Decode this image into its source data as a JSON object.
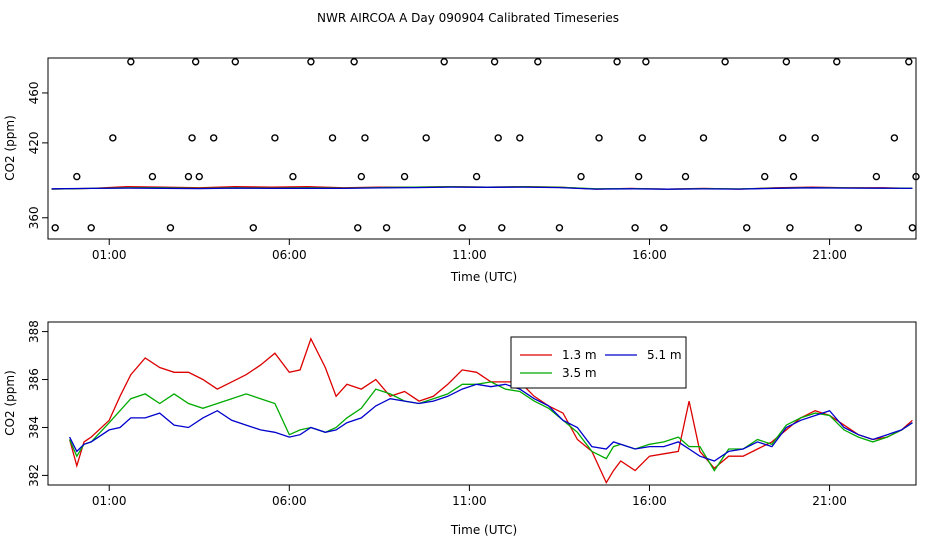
{
  "title": "NWR AIRCOA A  Day 090904  Calibrated Timeseries",
  "chart_data": [
    {
      "type": "scatter",
      "xlabel": "Time (UTC)",
      "ylabel": "CO2 (ppm)",
      "xlim": [
        -0.7,
        23.4
      ],
      "ylim": [
        343,
        488
      ],
      "xticks": [
        1,
        6,
        11,
        16,
        21
      ],
      "xtick_labels": [
        "01:00",
        "06:00",
        "11:00",
        "16:00",
        "21:00"
      ],
      "yticks": [
        360,
        420,
        460
      ],
      "ytick_labels": [
        "360",
        "420",
        "460"
      ],
      "grid": false,
      "series": [
        {
          "color": "#dd0000",
          "x": [
            -0.6,
            0.5,
            1.5,
            2.5,
            3.5,
            4.5,
            5.5,
            6.5,
            7.5,
            8.5,
            9.5,
            10.5,
            11.5,
            12.5,
            13.5,
            14.5,
            15.5,
            16.5,
            17.5,
            18.5,
            19.5,
            20.5,
            21.5,
            22.5,
            23.3
          ],
          "y": [
            383,
            383.5,
            385,
            384.5,
            384,
            385,
            384.5,
            385,
            384,
            384.5,
            384.5,
            385,
            384.5,
            385,
            384.5,
            383,
            383.5,
            383,
            383.5,
            383,
            384,
            384.5,
            384,
            384,
            383.5
          ]
        },
        {
          "color": "#00aa00",
          "x": [
            -0.6,
            0.5,
            1.5,
            2.5,
            3.5,
            4.5,
            5.5,
            6.5,
            7.5,
            8.5,
            9.5,
            10.5,
            11.5,
            12.5,
            13.5,
            14.5,
            15.5,
            16.5,
            17.5,
            18.5,
            19.5,
            20.5,
            21.5,
            22.5,
            23.3
          ],
          "y": [
            383,
            383.5,
            384,
            384,
            383.5,
            384,
            383.8,
            384,
            383.8,
            384.2,
            384.5,
            384.8,
            384.6,
            384.8,
            384.4,
            383.2,
            383.4,
            383,
            383.3,
            383.1,
            383.8,
            384.2,
            383.9,
            383.8,
            383.6
          ]
        },
        {
          "color": "#0000cc",
          "x": [
            -0.6,
            0.5,
            1.5,
            2.5,
            3.5,
            4.5,
            5.5,
            6.5,
            7.5,
            8.5,
            9.5,
            10.5,
            11.5,
            12.5,
            13.5,
            14.5,
            15.5,
            16.5,
            17.5,
            18.5,
            19.5,
            20.5,
            21.5,
            22.5,
            23.3
          ],
          "y": [
            383.2,
            383.5,
            383.8,
            383.6,
            383.4,
            383.8,
            383.5,
            383.6,
            383.5,
            383.9,
            384.2,
            384.6,
            384.4,
            384.6,
            384.2,
            383,
            383.2,
            382.9,
            383.1,
            383,
            383.6,
            384,
            383.8,
            383.7,
            383.5
          ]
        }
      ],
      "points": {
        "x": [
          -0.5,
          0.1,
          0.5,
          1.1,
          1.6,
          2.2,
          2.7,
          3.2,
          3.3,
          3.4,
          3.5,
          3.9,
          4.5,
          5.0,
          5.6,
          6.1,
          6.6,
          7.2,
          7.8,
          7.9,
          8.0,
          8.1,
          8.7,
          9.2,
          9.8,
          10.3,
          10.8,
          11.2,
          11.7,
          11.8,
          11.9,
          12.4,
          12.9,
          13.5,
          14.1,
          14.6,
          15.1,
          15.6,
          15.7,
          15.8,
          15.9,
          16.4,
          17.0,
          17.5,
          18.1,
          18.7,
          19.2,
          19.7,
          19.8,
          19.9,
          20.0,
          20.6,
          21.2,
          21.8,
          22.3,
          22.8,
          23.2,
          23.3,
          23.4
        ],
        "y": [
          352,
          393,
          352,
          424,
          485,
          393,
          352,
          393,
          424,
          485,
          393,
          424,
          485,
          352,
          424,
          393,
          485,
          424,
          485,
          352,
          393,
          424,
          352,
          393,
          424,
          485,
          352,
          393,
          485,
          424,
          352,
          424,
          485,
          352,
          393,
          424,
          485,
          352,
          393,
          424,
          485,
          352,
          393,
          424,
          485,
          352,
          393,
          424,
          485,
          352,
          393,
          424,
          485,
          352,
          393,
          424,
          485,
          352,
          393
        ]
      }
    },
    {
      "type": "line",
      "xlabel": "Time (UTC)",
      "ylabel": "CO2 (ppm)",
      "xlim": [
        -0.7,
        23.4
      ],
      "ylim": [
        381.6,
        388.4
      ],
      "xticks": [
        1,
        6,
        11,
        16,
        21
      ],
      "xtick_labels": [
        "01:00",
        "06:00",
        "11:00",
        "16:00",
        "21:00"
      ],
      "yticks": [
        382,
        384,
        386,
        388
      ],
      "ytick_labels": [
        "382",
        "384",
        "386",
        "388"
      ],
      "grid": false,
      "legend": "top-center",
      "series": [
        {
          "name": "1.3 m",
          "color": "#dd0000",
          "x": [
            -0.1,
            0.1,
            0.3,
            0.5,
            1.0,
            1.3,
            1.6,
            2.0,
            2.4,
            2.8,
            3.2,
            3.6,
            4.0,
            4.4,
            4.8,
            5.2,
            5.6,
            6.0,
            6.3,
            6.6,
            7.0,
            7.3,
            7.6,
            8.0,
            8.4,
            8.8,
            9.2,
            9.6,
            10.0,
            10.4,
            10.8,
            11.2,
            11.6,
            12.0,
            12.4,
            12.8,
            13.2,
            13.6,
            14.0,
            14.4,
            14.8,
            15.0,
            15.2,
            15.6,
            16.0,
            16.4,
            16.8,
            17.1,
            17.4,
            17.8,
            18.2,
            18.6,
            19.0,
            19.4,
            19.8,
            20.2,
            20.6,
            21.0,
            21.4,
            21.8,
            22.2,
            22.6,
            23.0,
            23.3
          ],
          "y": [
            383.5,
            382.4,
            383.4,
            383.6,
            384.3,
            385.3,
            386.2,
            386.9,
            386.5,
            386.3,
            386.3,
            386.0,
            385.6,
            385.9,
            386.2,
            386.6,
            387.1,
            386.3,
            386.4,
            387.7,
            386.5,
            385.3,
            385.8,
            385.6,
            386.0,
            385.3,
            385.5,
            385.1,
            385.3,
            385.8,
            386.4,
            386.3,
            385.9,
            385.9,
            385.9,
            385.3,
            384.9,
            384.6,
            383.5,
            383.0,
            381.7,
            382.2,
            382.6,
            382.2,
            382.8,
            382.9,
            383.0,
            385.1,
            383.0,
            382.3,
            382.8,
            382.8,
            383.1,
            383.4,
            383.9,
            384.4,
            384.7,
            384.5,
            384.1,
            383.7,
            383.5,
            383.6,
            383.9,
            384.3
          ]
        },
        {
          "name": "3.5 m",
          "color": "#00aa00",
          "x": [
            -0.1,
            0.1,
            0.3,
            0.5,
            1.0,
            1.3,
            1.6,
            2.0,
            2.4,
            2.8,
            3.2,
            3.6,
            4.0,
            4.4,
            4.8,
            5.2,
            5.6,
            6.0,
            6.3,
            6.6,
            7.0,
            7.3,
            7.6,
            8.0,
            8.4,
            8.8,
            9.2,
            9.6,
            10.0,
            10.4,
            10.8,
            11.2,
            11.6,
            12.0,
            12.4,
            12.8,
            13.2,
            13.6,
            14.0,
            14.4,
            14.8,
            15.0,
            15.2,
            15.6,
            16.0,
            16.4,
            16.8,
            17.1,
            17.4,
            17.8,
            18.2,
            18.6,
            19.0,
            19.4,
            19.8,
            20.2,
            20.6,
            21.0,
            21.4,
            21.8,
            22.2,
            22.6,
            23.0,
            23.3
          ],
          "y": [
            383.5,
            382.8,
            383.3,
            383.4,
            384.2,
            384.7,
            385.2,
            385.4,
            385.0,
            385.4,
            385.0,
            384.8,
            385.0,
            385.2,
            385.4,
            385.2,
            385.0,
            383.7,
            383.9,
            384.0,
            383.8,
            384.0,
            384.4,
            384.8,
            385.6,
            385.4,
            385.1,
            385.0,
            385.2,
            385.4,
            385.8,
            385.8,
            385.9,
            385.6,
            385.5,
            385.1,
            384.8,
            384.3,
            383.8,
            383.0,
            382.7,
            383.2,
            383.3,
            383.1,
            383.3,
            383.4,
            383.6,
            383.2,
            383.2,
            382.2,
            383.1,
            383.1,
            383.5,
            383.3,
            384.1,
            384.4,
            384.6,
            384.5,
            383.9,
            383.6,
            383.4,
            383.6,
            383.9,
            384.2
          ]
        },
        {
          "name": "5.1 m",
          "color": "#0000cc",
          "x": [
            -0.1,
            0.1,
            0.3,
            0.5,
            1.0,
            1.3,
            1.6,
            2.0,
            2.4,
            2.8,
            3.2,
            3.6,
            4.0,
            4.4,
            4.8,
            5.2,
            5.6,
            6.0,
            6.3,
            6.6,
            7.0,
            7.3,
            7.6,
            8.0,
            8.4,
            8.8,
            9.2,
            9.6,
            10.0,
            10.4,
            10.8,
            11.2,
            11.6,
            12.0,
            12.4,
            12.8,
            13.2,
            13.6,
            14.0,
            14.4,
            14.8,
            15.0,
            15.2,
            15.6,
            16.0,
            16.4,
            16.8,
            17.1,
            17.4,
            17.8,
            18.2,
            18.6,
            19.0,
            19.4,
            19.8,
            20.2,
            20.6,
            21.0,
            21.4,
            21.8,
            22.2,
            22.6,
            23.0,
            23.3
          ],
          "y": [
            383.6,
            383.0,
            383.3,
            383.4,
            383.9,
            384.0,
            384.4,
            384.4,
            384.6,
            384.1,
            384.0,
            384.4,
            384.7,
            384.3,
            384.1,
            383.9,
            383.8,
            383.6,
            383.7,
            384.0,
            383.8,
            383.9,
            384.2,
            384.4,
            384.9,
            385.2,
            385.1,
            385.0,
            385.1,
            385.3,
            385.6,
            385.8,
            385.7,
            385.8,
            385.6,
            385.2,
            384.9,
            384.3,
            384.0,
            383.2,
            383.1,
            383.4,
            383.3,
            383.1,
            383.2,
            383.2,
            383.4,
            383.1,
            382.8,
            382.6,
            383.0,
            383.1,
            383.4,
            383.2,
            384.0,
            384.3,
            384.5,
            384.7,
            384.0,
            383.7,
            383.5,
            383.7,
            383.9,
            384.2
          ]
        }
      ]
    }
  ]
}
